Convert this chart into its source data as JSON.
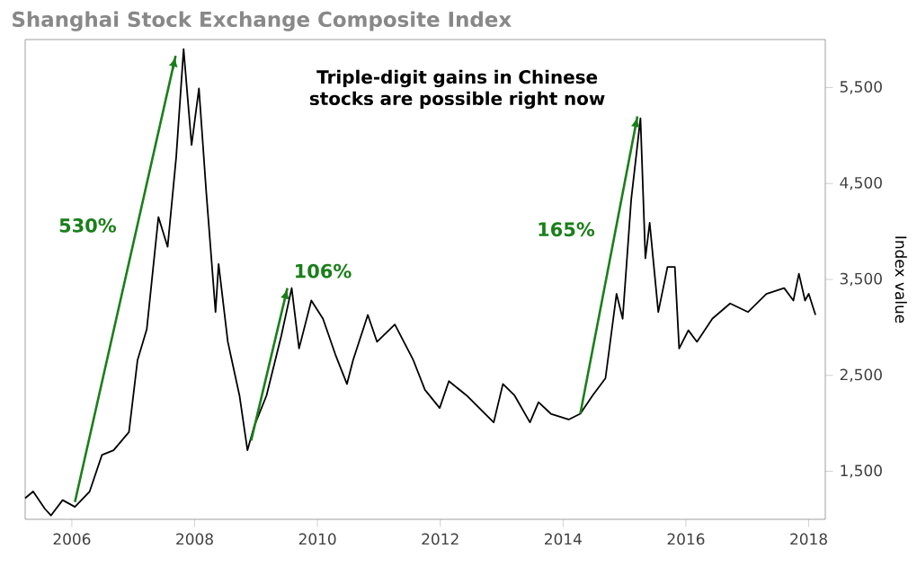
{
  "chart_data": {
    "type": "line",
    "title": "Shanghai Stock Exchange Composite Index",
    "ylabel": "Index value",
    "xlim": [
      2005.24,
      2018.27
    ],
    "xticks": [
      2006,
      2008,
      2010,
      2012,
      2014,
      2016,
      2018
    ],
    "ylim": [
      1000,
      6000
    ],
    "yticks": [
      {
        "value": 1500,
        "label": "1,500"
      },
      {
        "value": 2500,
        "label": "2,500"
      },
      {
        "value": 3500,
        "label": "3,500"
      },
      {
        "value": 4500,
        "label": "4,500"
      },
      {
        "value": 5500,
        "label": "5,500"
      }
    ],
    "grid": false,
    "series": [
      {
        "color": "#000000",
        "x": [
          2005.24,
          2005.37,
          2005.56,
          2005.66,
          2005.85,
          2006.05,
          2006.29,
          2006.49,
          2006.68,
          2006.93,
          2007.07,
          2007.22,
          2007.41,
          2007.56,
          2007.7,
          2007.82,
          2007.95,
          2008.07,
          2008.19,
          2008.34,
          2008.39,
          2008.54,
          2008.73,
          2008.86,
          2008.97,
          2009.17,
          2009.41,
          2009.58,
          2009.7,
          2009.9,
          2010.09,
          2010.29,
          2010.48,
          2010.58,
          2010.82,
          2010.97,
          2011.26,
          2011.56,
          2011.75,
          2011.99,
          2012.14,
          2012.43,
          2012.73,
          2012.87,
          2013.02,
          2013.21,
          2013.46,
          2013.6,
          2013.8,
          2014.09,
          2014.28,
          2014.48,
          2014.69,
          2014.87,
          2014.97,
          2015.11,
          2015.26,
          2015.34,
          2015.41,
          2015.55,
          2015.7,
          2015.82,
          2015.89,
          2016.04,
          2016.18,
          2016.43,
          2016.72,
          2017.01,
          2017.31,
          2017.6,
          2017.75,
          2017.84,
          2017.94,
          2018.0,
          2018.11
        ],
        "values": [
          1220,
          1290,
          1110,
          1040,
          1200,
          1130,
          1290,
          1670,
          1720,
          1910,
          2660,
          2980,
          4150,
          3840,
          4780,
          5900,
          4900,
          5490,
          4400,
          3160,
          3660,
          2850,
          2290,
          1720,
          1970,
          2290,
          2910,
          3410,
          2780,
          3280,
          3090,
          2720,
          2410,
          2660,
          3130,
          2850,
          3030,
          2660,
          2350,
          2160,
          2440,
          2290,
          2100,
          2010,
          2410,
          2290,
          2010,
          2220,
          2100,
          2040,
          2100,
          2290,
          2470,
          3350,
          3090,
          4340,
          5180,
          3720,
          4090,
          3160,
          3630,
          3630,
          2780,
          2970,
          2850,
          3090,
          3250,
          3160,
          3350,
          3410,
          3280,
          3560,
          3280,
          3350,
          3130
        ]
      },
      {
        "color": "#1a7f1a",
        "x": [
          2006.05,
          2007.69
        ],
        "values": [
          1180,
          5830
        ]
      },
      {
        "color": "#1a7f1a",
        "x": [
          2008.92,
          2009.51
        ],
        "values": [
          1820,
          3410
        ]
      },
      {
        "color": "#1a7f1a",
        "x": [
          2014.28,
          2015.21
        ],
        "values": [
          2100,
          5200
        ]
      }
    ],
    "annotations": [
      "Triple-digit gains in Chinese stocks are possible right now",
      "530%",
      "106%",
      "165%"
    ]
  }
}
